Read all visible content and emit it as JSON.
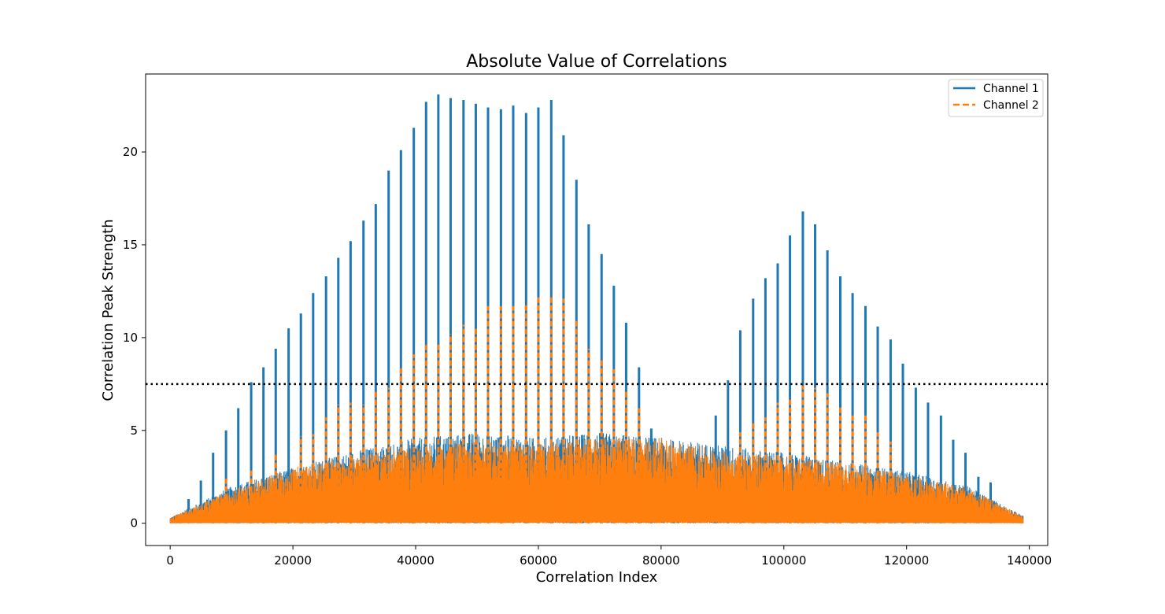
{
  "chart_data": {
    "type": "line",
    "title": "Absolute Value of Correlations",
    "xlabel": "Correlation Index",
    "ylabel": "Correlation Peak Strength",
    "xlim": [
      -4000,
      143000
    ],
    "ylim": [
      -1.2,
      24.2
    ],
    "xticks": [
      0,
      20000,
      40000,
      60000,
      80000,
      100000,
      120000,
      140000
    ],
    "xtick_labels": [
      "0",
      "20000",
      "40000",
      "60000",
      "80000",
      "100000",
      "120000",
      "140000"
    ],
    "yticks": [
      0,
      5,
      10,
      15,
      20
    ],
    "ytick_labels": [
      "0",
      "5",
      "10",
      "15",
      "20"
    ],
    "grid": false,
    "legend_position": "top-right",
    "threshold": {
      "y": 7.5,
      "style": "dotted",
      "color": "#000000"
    },
    "series": [
      {
        "name": "Channel 1",
        "color": "#1f77b4",
        "style": "solid",
        "peaks": [
          {
            "x": 3000,
            "y": 1.3
          },
          {
            "x": 5000,
            "y": 2.3
          },
          {
            "x": 7000,
            "y": 3.8
          },
          {
            "x": 9100,
            "y": 5.0
          },
          {
            "x": 11100,
            "y": 6.2
          },
          {
            "x": 13200,
            "y": 7.6
          },
          {
            "x": 15200,
            "y": 8.4
          },
          {
            "x": 17200,
            "y": 9.4
          },
          {
            "x": 19300,
            "y": 10.5
          },
          {
            "x": 21300,
            "y": 11.3
          },
          {
            "x": 23300,
            "y": 12.4
          },
          {
            "x": 25400,
            "y": 13.3
          },
          {
            "x": 27400,
            "y": 14.3
          },
          {
            "x": 29400,
            "y": 15.2
          },
          {
            "x": 31500,
            "y": 16.3
          },
          {
            "x": 33500,
            "y": 17.2
          },
          {
            "x": 35600,
            "y": 19.0
          },
          {
            "x": 37600,
            "y": 20.1
          },
          {
            "x": 39700,
            "y": 21.3
          },
          {
            "x": 41700,
            "y": 22.7
          },
          {
            "x": 43700,
            "y": 23.1
          },
          {
            "x": 45700,
            "y": 22.9
          },
          {
            "x": 47800,
            "y": 22.8
          },
          {
            "x": 49800,
            "y": 22.6
          },
          {
            "x": 51800,
            "y": 22.4
          },
          {
            "x": 53900,
            "y": 22.3
          },
          {
            "x": 55900,
            "y": 22.5
          },
          {
            "x": 58000,
            "y": 22.1
          },
          {
            "x": 60000,
            "y": 22.4
          },
          {
            "x": 62100,
            "y": 22.8
          },
          {
            "x": 64100,
            "y": 20.9
          },
          {
            "x": 66200,
            "y": 18.5
          },
          {
            "x": 68200,
            "y": 16.1
          },
          {
            "x": 70300,
            "y": 14.5
          },
          {
            "x": 72300,
            "y": 12.8
          },
          {
            "x": 74300,
            "y": 10.8
          },
          {
            "x": 76400,
            "y": 8.4
          },
          {
            "x": 78400,
            "y": 5.1
          },
          {
            "x": 88900,
            "y": 5.8
          },
          {
            "x": 90900,
            "y": 7.7
          },
          {
            "x": 92900,
            "y": 10.4
          },
          {
            "x": 95000,
            "y": 12.1
          },
          {
            "x": 97000,
            "y": 13.2
          },
          {
            "x": 99000,
            "y": 14.0
          },
          {
            "x": 101000,
            "y": 15.5
          },
          {
            "x": 103100,
            "y": 16.8
          },
          {
            "x": 105100,
            "y": 16.1
          },
          {
            "x": 107100,
            "y": 14.7
          },
          {
            "x": 109200,
            "y": 13.3
          },
          {
            "x": 111200,
            "y": 12.4
          },
          {
            "x": 113300,
            "y": 11.7
          },
          {
            "x": 115300,
            "y": 10.6
          },
          {
            "x": 117400,
            "y": 9.9
          },
          {
            "x": 119400,
            "y": 8.6
          },
          {
            "x": 121500,
            "y": 7.3
          },
          {
            "x": 123500,
            "y": 6.5
          },
          {
            "x": 125600,
            "y": 5.8
          },
          {
            "x": 127600,
            "y": 4.5
          },
          {
            "x": 129600,
            "y": 3.8
          },
          {
            "x": 131700,
            "y": 2.5
          },
          {
            "x": 133700,
            "y": 2.2
          }
        ],
        "envelope": [
          {
            "x": 0,
            "y": 0.3
          },
          {
            "x": 10000,
            "y": 2.0
          },
          {
            "x": 20000,
            "y": 3.0
          },
          {
            "x": 30000,
            "y": 3.9
          },
          {
            "x": 40000,
            "y": 4.6
          },
          {
            "x": 50000,
            "y": 4.9
          },
          {
            "x": 60000,
            "y": 4.6
          },
          {
            "x": 70000,
            "y": 4.9
          },
          {
            "x": 80000,
            "y": 4.6
          },
          {
            "x": 90000,
            "y": 4.2
          },
          {
            "x": 100000,
            "y": 3.8
          },
          {
            "x": 110000,
            "y": 3.3
          },
          {
            "x": 120000,
            "y": 2.8
          },
          {
            "x": 130000,
            "y": 2.0
          },
          {
            "x": 139000,
            "y": 0.4
          }
        ]
      },
      {
        "name": "Channel 2",
        "color": "#ff7f0e",
        "style": "dashed",
        "peaks": [
          {
            "x": 9100,
            "y": 2.4
          },
          {
            "x": 13200,
            "y": 2.9
          },
          {
            "x": 17200,
            "y": 3.8
          },
          {
            "x": 21300,
            "y": 4.7
          },
          {
            "x": 23300,
            "y": 4.8
          },
          {
            "x": 25400,
            "y": 5.7
          },
          {
            "x": 27400,
            "y": 6.4
          },
          {
            "x": 29400,
            "y": 6.5
          },
          {
            "x": 31500,
            "y": 6.4
          },
          {
            "x": 33500,
            "y": 7.1
          },
          {
            "x": 35600,
            "y": 7.3
          },
          {
            "x": 37600,
            "y": 8.4
          },
          {
            "x": 39700,
            "y": 9.1
          },
          {
            "x": 41700,
            "y": 9.6
          },
          {
            "x": 43700,
            "y": 9.7
          },
          {
            "x": 45700,
            "y": 10.2
          },
          {
            "x": 47800,
            "y": 10.7
          },
          {
            "x": 49800,
            "y": 10.6
          },
          {
            "x": 51800,
            "y": 11.7
          },
          {
            "x": 53900,
            "y": 11.7
          },
          {
            "x": 55900,
            "y": 11.7
          },
          {
            "x": 58000,
            "y": 11.8
          },
          {
            "x": 60000,
            "y": 12.2
          },
          {
            "x": 62100,
            "y": 12.3
          },
          {
            "x": 64100,
            "y": 12.1
          },
          {
            "x": 66200,
            "y": 10.9
          },
          {
            "x": 68200,
            "y": 9.4
          },
          {
            "x": 70300,
            "y": 8.9
          },
          {
            "x": 72300,
            "y": 8.3
          },
          {
            "x": 74300,
            "y": 7.2
          },
          {
            "x": 76400,
            "y": 6.2
          },
          {
            "x": 92900,
            "y": 4.9
          },
          {
            "x": 95000,
            "y": 5.4
          },
          {
            "x": 97000,
            "y": 5.7
          },
          {
            "x": 99000,
            "y": 6.5
          },
          {
            "x": 101000,
            "y": 6.8
          },
          {
            "x": 103100,
            "y": 7.4
          },
          {
            "x": 105100,
            "y": 7.3
          },
          {
            "x": 107100,
            "y": 7.0
          },
          {
            "x": 109200,
            "y": 6.3
          },
          {
            "x": 111200,
            "y": 5.9
          },
          {
            "x": 113300,
            "y": 5.8
          },
          {
            "x": 115300,
            "y": 4.9
          },
          {
            "x": 117400,
            "y": 4.4
          }
        ],
        "envelope": [
          {
            "x": 0,
            "y": 0.3
          },
          {
            "x": 10000,
            "y": 1.8
          },
          {
            "x": 20000,
            "y": 3.0
          },
          {
            "x": 30000,
            "y": 3.6
          },
          {
            "x": 40000,
            "y": 4.1
          },
          {
            "x": 50000,
            "y": 4.4
          },
          {
            "x": 60000,
            "y": 4.3
          },
          {
            "x": 70000,
            "y": 4.6
          },
          {
            "x": 80000,
            "y": 4.6
          },
          {
            "x": 90000,
            "y": 3.9
          },
          {
            "x": 100000,
            "y": 3.6
          },
          {
            "x": 110000,
            "y": 3.2
          },
          {
            "x": 120000,
            "y": 2.6
          },
          {
            "x": 130000,
            "y": 1.9
          },
          {
            "x": 139000,
            "y": 0.4
          }
        ]
      }
    ]
  }
}
